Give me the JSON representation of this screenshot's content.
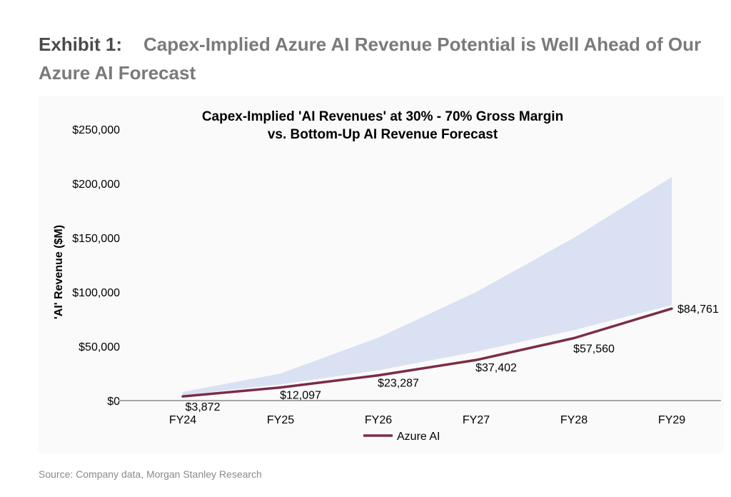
{
  "heading": {
    "exhibit_label": "Exhibit 1:",
    "title": "Capex-Implied Azure AI Revenue Potential is Well Ahead of Our Azure AI Forecast"
  },
  "source": "Source: Company data, Morgan Stanley Research",
  "chart_data": {
    "type": "area",
    "title_lines": [
      "Capex-Implied 'AI Revenues' at 30% - 70% Gross Margin",
      "vs. Bottom-Up AI Revenue Forecast"
    ],
    "ylabel": "'AI' Revenue ($M)",
    "xlabel": "",
    "categories": [
      "FY24",
      "FY25",
      "FY26",
      "FY27",
      "FY28",
      "FY29"
    ],
    "ylim": [
      0,
      250000
    ],
    "yticks": [
      0,
      50000,
      100000,
      150000,
      200000,
      250000
    ],
    "ytick_labels": [
      "$0",
      "$50,000",
      "$100,000",
      "$150,000",
      "$200,000",
      "$250,000"
    ],
    "grid": false,
    "legend_position": "bottom",
    "band": {
      "lower": [
        5000,
        15000,
        28000,
        45000,
        65000,
        88000
      ],
      "upper": [
        8000,
        25000,
        58000,
        100000,
        150000,
        206000
      ],
      "color": "#d9e1f2"
    },
    "series": [
      {
        "name": "Azure AI",
        "color": "#7b2c48",
        "values": [
          3872,
          12097,
          23287,
          37402,
          57560,
          84761
        ],
        "labels": [
          "$3,872",
          "$12,097",
          "$23,287",
          "$37,402",
          "$57,560",
          "$84,761"
        ]
      }
    ]
  }
}
